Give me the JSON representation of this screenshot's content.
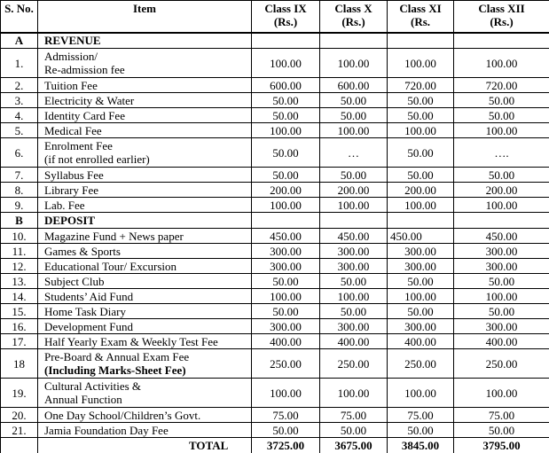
{
  "table": {
    "columns": [
      {
        "label": "S. No."
      },
      {
        "label": "Item"
      },
      {
        "line1": "Class IX",
        "line2": "(Rs.)"
      },
      {
        "line1": "Class X",
        "line2": "(Rs.)"
      },
      {
        "line1": "Class XI",
        "line2": "(Rs."
      },
      {
        "line1": "Class XII",
        "line2": "(Rs.)"
      }
    ],
    "rows": [
      {
        "type": "section",
        "sno": "A",
        "item": [
          "REVENUE"
        ],
        "values": [
          "",
          "",
          "",
          ""
        ]
      },
      {
        "type": "normal",
        "sno": "1.",
        "item": [
          "Admission/",
          "Re-admission fee"
        ],
        "values": [
          "100.00",
          "100.00",
          "100.00",
          "100.00"
        ]
      },
      {
        "type": "normal",
        "sno": "2.",
        "item": [
          "Tuition Fee"
        ],
        "values": [
          "600.00",
          "600.00",
          "720.00",
          "720.00"
        ]
      },
      {
        "type": "normal",
        "sno": "3.",
        "item": [
          "Electricity & Water"
        ],
        "values": [
          "50.00",
          "50.00",
          "50.00",
          "50.00"
        ]
      },
      {
        "type": "normal",
        "sno": "4.",
        "item": [
          "Identity Card Fee"
        ],
        "values": [
          "50.00",
          "50.00",
          "50.00",
          "50.00"
        ]
      },
      {
        "type": "normal",
        "sno": "5.",
        "item": [
          "Medical Fee"
        ],
        "values": [
          "100.00",
          "100.00",
          "100.00",
          "100.00"
        ]
      },
      {
        "type": "normal",
        "sno": "6.",
        "item": [
          "Enrolment Fee",
          "(if not enrolled earlier)"
        ],
        "values": [
          "50.00",
          "…",
          "50.00",
          "…."
        ]
      },
      {
        "type": "normal",
        "sno": "7.",
        "item": [
          "Syllabus Fee"
        ],
        "values": [
          "50.00",
          "50.00",
          "50.00",
          "50.00"
        ]
      },
      {
        "type": "normal",
        "sno": "8.",
        "item": [
          "Library Fee"
        ],
        "values": [
          "200.00",
          "200.00",
          "200.00",
          "200.00"
        ]
      },
      {
        "type": "normal",
        "sno": "9.",
        "item": [
          "Lab. Fee"
        ],
        "values": [
          "100.00",
          "100.00",
          "100.00",
          "100.00"
        ]
      },
      {
        "type": "section",
        "sno": "B",
        "item": [
          "DEPOSIT"
        ],
        "values": [
          "",
          "",
          "",
          ""
        ]
      },
      {
        "type": "normal",
        "sno": "10.",
        "item": [
          "Magazine Fund + News paper"
        ],
        "values": [
          "450.00",
          "450.00",
          "450.00",
          "450.00"
        ],
        "value_aligns": [
          "center",
          "center",
          "left",
          "center"
        ]
      },
      {
        "type": "normal",
        "sno": "11.",
        "item": [
          "Games & Sports"
        ],
        "values": [
          "300.00",
          "300.00",
          "300.00",
          "300.00"
        ]
      },
      {
        "type": "normal",
        "sno": "12.",
        "item": [
          "Educational Tour/ Excursion"
        ],
        "values": [
          "300.00",
          "300.00",
          "300.00",
          "300.00"
        ]
      },
      {
        "type": "normal",
        "sno": "13.",
        "item": [
          "Subject Club"
        ],
        "values": [
          "50.00",
          "50.00",
          "50.00",
          "50.00"
        ]
      },
      {
        "type": "normal",
        "sno": "14.",
        "item": [
          "Students’ Aid Fund"
        ],
        "values": [
          "100.00",
          "100.00",
          "100.00",
          "100.00"
        ]
      },
      {
        "type": "normal",
        "sno": "15.",
        "item": [
          "Home Task Diary"
        ],
        "values": [
          "50.00",
          "50.00",
          "50.00",
          "50.00"
        ]
      },
      {
        "type": "normal",
        "sno": "16.",
        "item": [
          "Development Fund"
        ],
        "values": [
          "300.00",
          "300.00",
          "300.00",
          "300.00"
        ]
      },
      {
        "type": "normal",
        "sno": "17.",
        "item": [
          "Half Yearly Exam & Weekly Test Fee"
        ],
        "values": [
          "400.00",
          "400.00",
          "400.00",
          "400.00"
        ]
      },
      {
        "type": "normal",
        "sno": "18",
        "item": [
          "Pre-Board & Annual Exam Fee",
          "(Including Marks-Sheet Fee)"
        ],
        "item_line2_bold": true,
        "values": [
          "250.00",
          "250.00",
          "250.00",
          "250.00"
        ]
      },
      {
        "type": "normal",
        "sno": "19.",
        "item": [
          "Cultural Activities &",
          "Annual Function"
        ],
        "values": [
          "100.00",
          "100.00",
          "100.00",
          "100.00"
        ]
      },
      {
        "type": "normal",
        "sno": "20.",
        "item": [
          "One Day School/Children’s Govt."
        ],
        "values": [
          "75.00",
          "75.00",
          "75.00",
          "75.00"
        ]
      },
      {
        "type": "normal",
        "sno": "21.",
        "item": [
          "Jamia Foundation Day Fee"
        ],
        "values": [
          "50.00",
          "50.00",
          "50.00",
          "50.00"
        ]
      },
      {
        "type": "total",
        "sno": "",
        "item": [
          "TOTAL"
        ],
        "values": [
          "3725.00",
          "3675.00",
          "3845.00",
          "3795.00"
        ]
      }
    ]
  },
  "colors": {
    "background": "#ffffff",
    "border": "#000000",
    "text": "#000000"
  }
}
